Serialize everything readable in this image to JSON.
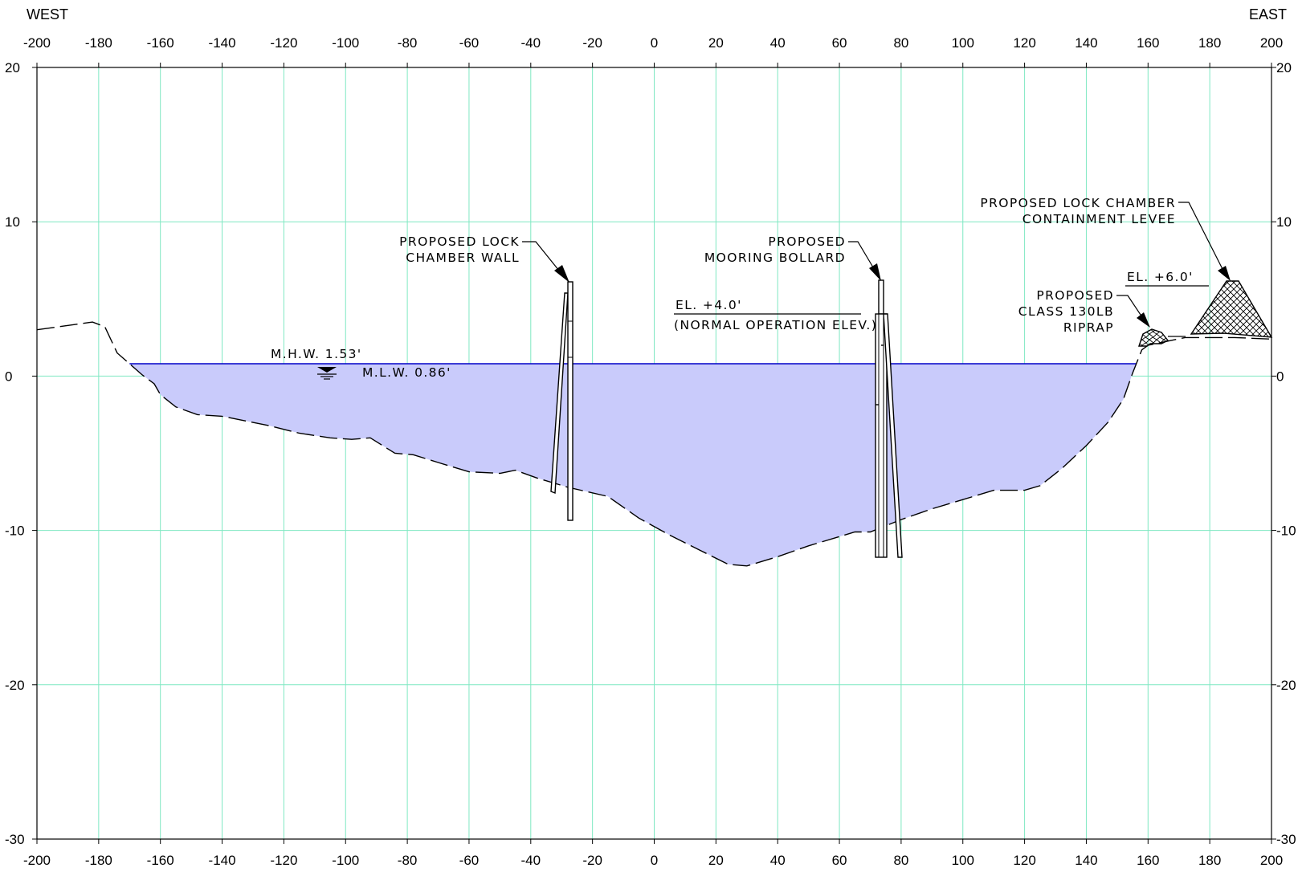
{
  "directions": {
    "west": "WEST",
    "east": "EAST"
  },
  "axes": {
    "x_range": [
      -200,
      200
    ],
    "y_range": [
      -30,
      20
    ],
    "x_ticks": [
      -200,
      -180,
      -160,
      -140,
      -120,
      -100,
      -80,
      -60,
      -40,
      -20,
      0,
      20,
      40,
      60,
      80,
      100,
      120,
      140,
      160,
      180,
      200
    ],
    "y_ticks": [
      20,
      10,
      0,
      -10,
      -20,
      -30
    ],
    "grid": true,
    "grid_color": "#7fe8c2"
  },
  "colors": {
    "water_fill": "#c9cbfb",
    "water_line": "#0000c8"
  },
  "ground_profile": [
    [
      -200,
      3.0
    ],
    [
      -182,
      3.5
    ],
    [
      -178,
      3.2
    ],
    [
      -174,
      1.5
    ],
    [
      -170,
      0.8
    ],
    [
      -166,
      0.1
    ],
    [
      -162,
      -0.5
    ],
    [
      -160,
      -1.2
    ],
    [
      -155,
      -2.0
    ],
    [
      -148,
      -2.5
    ],
    [
      -140,
      -2.6
    ],
    [
      -125,
      -3.2
    ],
    [
      -115,
      -3.7
    ],
    [
      -105,
      -4.0
    ],
    [
      -98,
      -4.1
    ],
    [
      -92,
      -4.0
    ],
    [
      -84,
      -5.0
    ],
    [
      -78,
      -5.1
    ],
    [
      -70,
      -5.6
    ],
    [
      -60,
      -6.2
    ],
    [
      -50,
      -6.3
    ],
    [
      -45,
      -6.1
    ],
    [
      -38,
      -6.6
    ],
    [
      -28,
      -7.2
    ],
    [
      -15,
      -7.8
    ],
    [
      -5,
      -9.2
    ],
    [
      5,
      -10.3
    ],
    [
      15,
      -11.3
    ],
    [
      24,
      -12.2
    ],
    [
      30,
      -12.3
    ],
    [
      40,
      -11.7
    ],
    [
      50,
      -11.0
    ],
    [
      60,
      -10.4
    ],
    [
      65,
      -10.1
    ],
    [
      70,
      -10.1
    ],
    [
      80,
      -9.3
    ],
    [
      90,
      -8.6
    ],
    [
      100,
      -8.0
    ],
    [
      110,
      -7.4
    ],
    [
      120,
      -7.4
    ],
    [
      125,
      -7.1
    ],
    [
      132,
      -6.0
    ],
    [
      140,
      -4.5
    ],
    [
      147,
      -3.0
    ],
    [
      152,
      -1.5
    ],
    [
      155,
      0.2
    ],
    [
      158,
      1.7
    ],
    [
      160,
      2.0
    ],
    [
      172,
      2.5
    ],
    [
      188,
      2.5
    ],
    [
      200,
      2.4
    ]
  ],
  "water_surface_elevation": 0.8,
  "labels": {
    "mhw": "M.H.W. 1.53'",
    "mlw": "M.L.W. 0.86'",
    "lock_wall_line1": "PROPOSED LOCK",
    "lock_wall_line2": "CHAMBER WALL",
    "bollard_line1": "PROPOSED",
    "bollard_line2": "MOORING BOLLARD",
    "normal_el": "EL. +4.0'",
    "normal_el_note": "(NORMAL OPERATION ELEV.)",
    "levee_line1": "PROPOSED LOCK CHAMBER",
    "levee_line2": "CONTAINMENT LEVEE",
    "levee_el": "EL. +6.0'",
    "riprap_line1": "PROPOSED",
    "riprap_line2": "CLASS 130LB",
    "riprap_line3": "RIPRAP"
  }
}
